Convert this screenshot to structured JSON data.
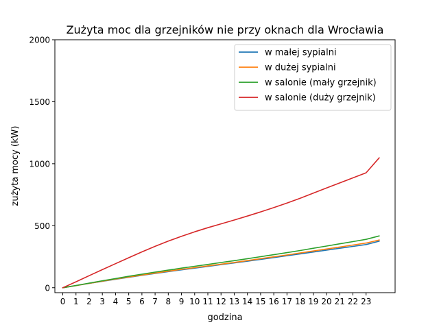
{
  "chart_data": {
    "type": "line",
    "title": "Zużyta moc dla grzejników nie przy oknach dla Wrocławia",
    "xlabel": "godzina",
    "ylabel": "zużyta mocy (kW)",
    "x": [
      0,
      1,
      2,
      3,
      4,
      5,
      6,
      7,
      8,
      9,
      10,
      11,
      12,
      13,
      14,
      15,
      16,
      17,
      18,
      19,
      20,
      21,
      22,
      23,
      24
    ],
    "x_ticks": [
      "0",
      "1",
      "2",
      "3",
      "4",
      "5",
      "6",
      "7",
      "8",
      "9",
      "10",
      "11",
      "12",
      "13",
      "14",
      "15",
      "16",
      "17",
      "18",
      "19",
      "20",
      "21",
      "22",
      "23"
    ],
    "y_ticks": [
      "0",
      "500",
      "1000",
      "1500",
      "2000"
    ],
    "xlim": [
      -0.6,
      25.2
    ],
    "ylim": [
      -40,
      2000
    ],
    "grid": false,
    "legend_position": "top-right",
    "series": [
      {
        "name": "w małej sypialni",
        "color": "#1f77b4",
        "values": [
          0,
          17,
          35,
          52,
          68,
          84,
          100,
          115,
          130,
          144,
          158,
          172,
          186,
          200,
          214,
          228,
          243,
          258,
          273,
          288,
          303,
          318,
          333,
          348,
          375
        ]
      },
      {
        "name": "w dużej sypialni",
        "color": "#ff7f0e",
        "values": [
          0,
          17,
          35,
          53,
          70,
          86,
          102,
          118,
          133,
          148,
          162,
          176,
          190,
          204,
          219,
          234,
          249,
          264,
          280,
          296,
          312,
          328,
          344,
          360,
          385
        ]
      },
      {
        "name": "w salonie (mały grzejnik)",
        "color": "#2ca02c",
        "values": [
          0,
          18,
          37,
          56,
          74,
          92,
          109,
          126,
          142,
          158,
          173,
          188,
          203,
          218,
          234,
          250,
          266,
          283,
          300,
          318,
          336,
          354,
          372,
          390,
          418
        ]
      },
      {
        "name": "w salonie (duży grzejnik)",
        "color": "#d62728",
        "values": [
          0,
          48,
          97,
          146,
          194,
          242,
          289,
          334,
          376,
          415,
          451,
          484,
          515,
          546,
          578,
          611,
          646,
          683,
          722,
          763,
          804,
          845,
          886,
          927,
          1048
        ]
      }
    ]
  }
}
